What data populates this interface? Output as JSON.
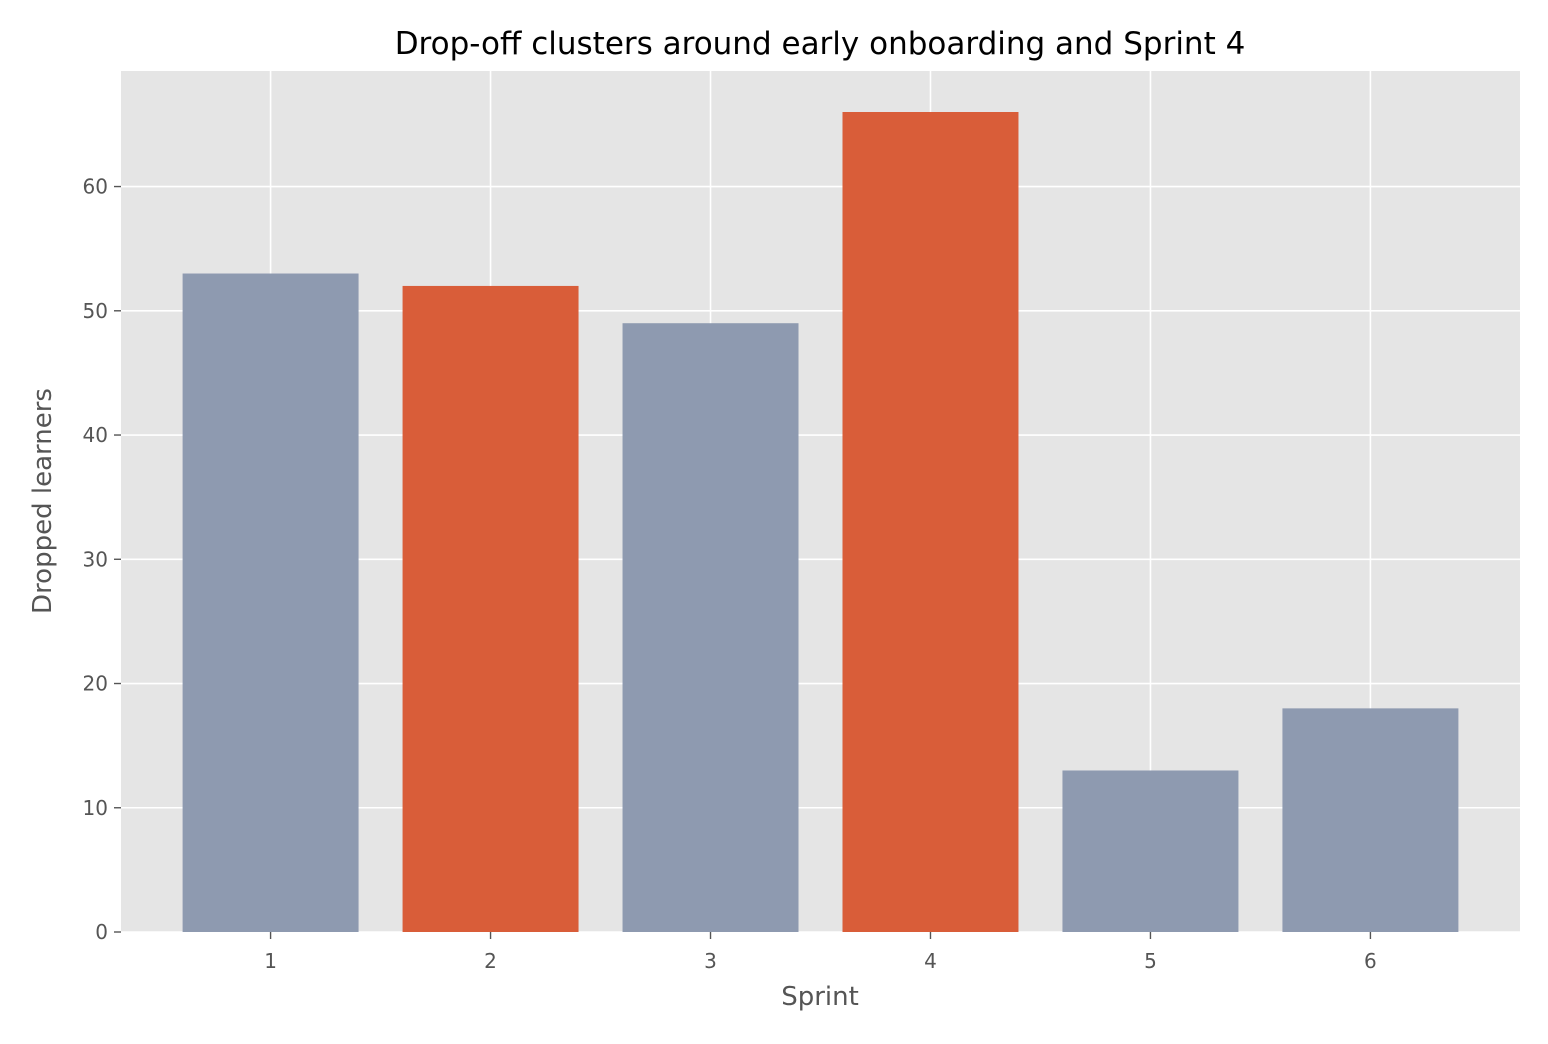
{
  "chart_data": {
    "type": "bar",
    "title": "Drop-off clusters around early onboarding and Sprint 4",
    "xlabel": "Sprint",
    "ylabel": "Dropped learners",
    "categories": [
      "1",
      "2",
      "3",
      "4",
      "5",
      "6"
    ],
    "values": [
      53,
      52,
      49,
      66,
      13,
      18
    ],
    "highlighted": [
      false,
      true,
      false,
      true,
      false,
      false
    ],
    "yticks": [
      0,
      10,
      20,
      30,
      40,
      50,
      60
    ],
    "ylim": [
      0,
      69.3
    ],
    "xlim": [
      0.32,
      6.68
    ],
    "grid": true,
    "colors": {
      "default_bar": "#8e9ab0",
      "highlight_bar": "#d95d39",
      "plot_background": "#e5e5e5",
      "grid": "#ffffff"
    }
  }
}
